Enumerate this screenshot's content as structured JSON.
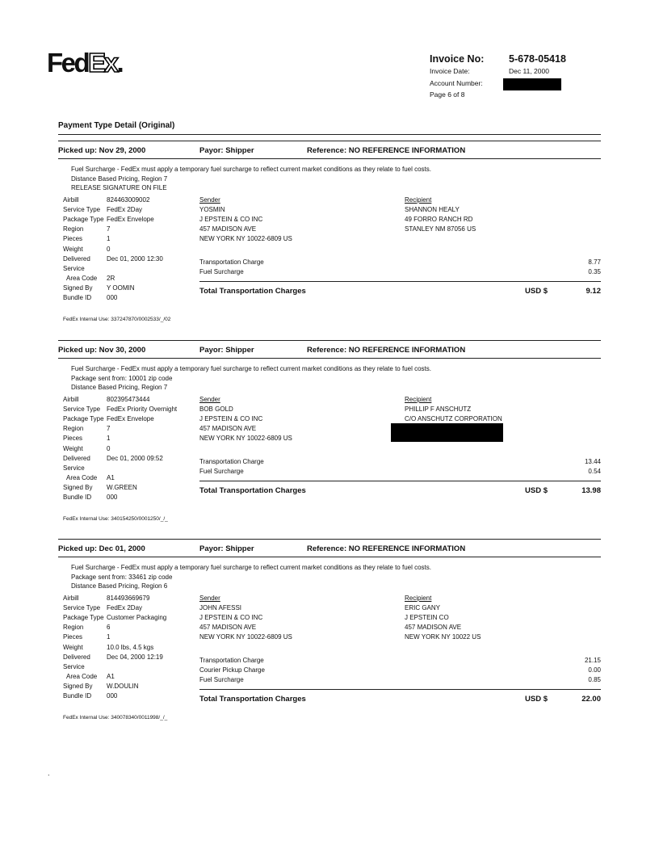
{
  "header": {
    "logo_text": "FedEx",
    "invoice_no_label": "Invoice No:",
    "invoice_no": "5-678-05418",
    "invoice_date_label": "Invoice Date:",
    "invoice_date": "Dec 11, 2000",
    "account_number_label": "Account Number:",
    "account_number_redacted": true,
    "page_label": "Page 6 of 8"
  },
  "title": "Payment Type Detail (Original)",
  "labels": {
    "sender": "Sender",
    "recipient": "Recipient",
    "total": "Total Transportation Charges",
    "currency": "USD $"
  },
  "shipments": [
    {
      "picked_up": "Picked up: Nov 29, 2000",
      "payor": "Payor: Shipper",
      "reference": "Reference: NO REFERENCE INFORMATION",
      "notes": [
        "Fuel Surcharge - FedEx must apply a temporary fuel surcharge to reflect current market conditions as they relate to fuel costs.",
        "Distance Based Pricing, Region 7",
        "RELEASE SIGNATURE ON FILE"
      ],
      "details": [
        {
          "label": "Airbill",
          "value": "824463009002"
        },
        {
          "label": "Service Type",
          "value": "FedEx 2Day"
        },
        {
          "label": "Package Type",
          "value": "FedEx Envelope"
        },
        {
          "label": "Region",
          "value": "7"
        },
        {
          "label": "Pieces",
          "value": "1"
        },
        {
          "label": "Weight",
          "value": "0"
        },
        {
          "label": "Delivered",
          "value": "Dec 01, 2000 12:30"
        },
        {
          "label": "Service",
          "value": ""
        },
        {
          "label": "  Area Code",
          "value": "2R"
        },
        {
          "label": "Signed By",
          "value": "Y OOMIN"
        },
        {
          "label": "Bundle ID",
          "value": "000"
        }
      ],
      "sender": [
        "YOSMIN",
        "J EPSTEIN & CO INC",
        "457 MADISON AVE",
        "NEW YORK NY 10022-6809  US"
      ],
      "recipient": [
        "SHANNON HEALY",
        "49 FORRO RANCH RD",
        "STANLEY NM 87056  US"
      ],
      "recipient_redacted": false,
      "charges": [
        {
          "label": "Transportation Charge",
          "amount": "8.77"
        },
        {
          "label": "Fuel Surcharge",
          "amount": "0.35"
        }
      ],
      "total": "9.12",
      "internal_use": "FedEx Internal Use: 337247870/0002533/_/02"
    },
    {
      "picked_up": "Picked up: Nov 30, 2000",
      "payor": "Payor: Shipper",
      "reference": "Reference: NO REFERENCE INFORMATION",
      "notes": [
        "Fuel Surcharge - FedEx must apply a temporary fuel surcharge to reflect current market conditions as they relate to fuel costs.",
        "Package sent from: 10001 zip code",
        "Distance Based Pricing, Region 7"
      ],
      "details": [
        {
          "label": "Airbill",
          "value": "802395473444"
        },
        {
          "label": "Service Type",
          "value": "FedEx Priority Overnight"
        },
        {
          "label": "Package Type",
          "value": "FedEx Envelope"
        },
        {
          "label": "Region",
          "value": "7"
        },
        {
          "label": "Pieces",
          "value": "1"
        },
        {
          "label": "Weight",
          "value": "0"
        },
        {
          "label": "Delivered",
          "value": "Dec 01, 2000 09:52"
        },
        {
          "label": "Service",
          "value": ""
        },
        {
          "label": "  Area Code",
          "value": "A1"
        },
        {
          "label": "Signed By",
          "value": "W.GREEN"
        },
        {
          "label": "Bundle ID",
          "value": "000"
        }
      ],
      "sender": [
        "BOB GOLD",
        "J EPSTEIN & CO INC",
        "457 MADISON AVE",
        "NEW YORK NY 10022-6809  US"
      ],
      "recipient": [
        "PHILLIP F ANSCHUTZ",
        "C/O ANSCHUTZ CORPORATION"
      ],
      "recipient_redacted": true,
      "charges": [
        {
          "label": "Transportation Charge",
          "amount": "13.44"
        },
        {
          "label": "Fuel Surcharge",
          "amount": "0.54"
        }
      ],
      "total": "13.98",
      "internal_use": "FedEx Internal Use: 340154250/0001250/_/_"
    },
    {
      "picked_up": "Picked up: Dec 01, 2000",
      "payor": "Payor: Shipper",
      "reference": "Reference: NO REFERENCE INFORMATION",
      "notes": [
        "Fuel Surcharge - FedEx must apply a temporary fuel surcharge to reflect current market conditions as they relate to fuel costs.",
        "Package sent from: 33461 zip code",
        "Distance Based Pricing, Region 6"
      ],
      "details": [
        {
          "label": "Airbill",
          "value": "814493669679"
        },
        {
          "label": "Service Type",
          "value": "FedEx 2Day"
        },
        {
          "label": "Package Type",
          "value": "Customer Packaging"
        },
        {
          "label": "Region",
          "value": "6"
        },
        {
          "label": "Pieces",
          "value": "1"
        },
        {
          "label": "Weight",
          "value": "10.0 lbs, 4.5 kgs"
        },
        {
          "label": "Delivered",
          "value": "Dec 04, 2000 12:19"
        },
        {
          "label": "Service",
          "value": ""
        },
        {
          "label": "  Area Code",
          "value": "A1"
        },
        {
          "label": "Signed By",
          "value": "W.DOULIN"
        },
        {
          "label": "Bundle ID",
          "value": "000"
        }
      ],
      "sender": [
        "JOHN AFESSI",
        "J EPSTEIN & CO INC",
        "457 MADISON AVE",
        "NEW YORK NY 10022-6809  US"
      ],
      "recipient": [
        "ERIC GANY",
        "J EPSTEIN CO",
        "457 MADISON AVE",
        "NEW YORK NY 10022  US"
      ],
      "recipient_redacted": false,
      "charges": [
        {
          "label": "Transportation Charge",
          "amount": "21.15"
        },
        {
          "label": "Courier Pickup Charge",
          "amount": "0.00"
        },
        {
          "label": "Fuel Surcharge",
          "amount": "0.85"
        }
      ],
      "total": "22.00",
      "internal_use": "FedEx Internal Use: 340078340/0011998/_/_"
    }
  ],
  "footer_mark": "."
}
